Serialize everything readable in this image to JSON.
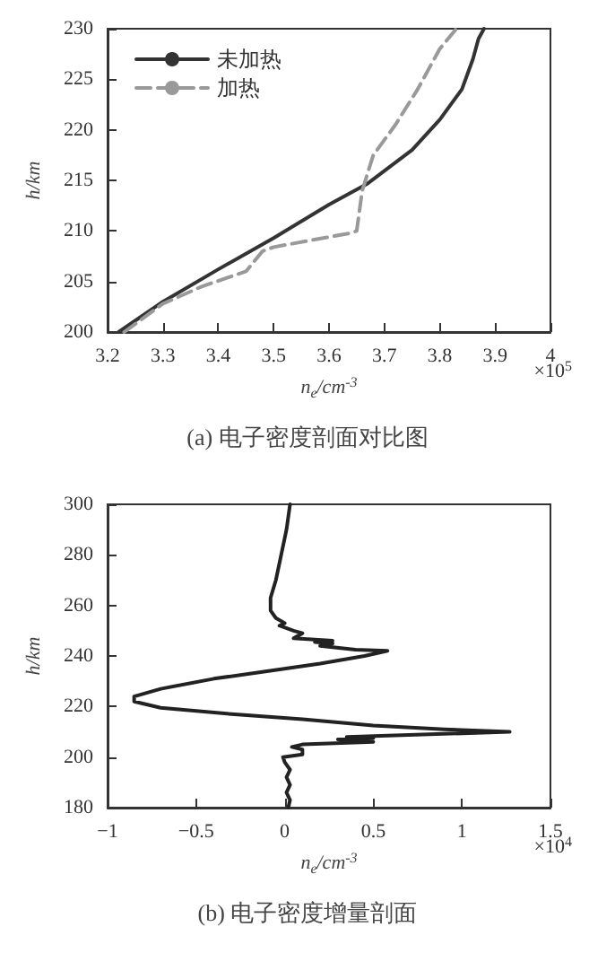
{
  "chart_data": [
    {
      "type": "line",
      "title": "(a) 电子密度剖面对比图",
      "xlabel": "n$_{e}$/cm$^{-3}$",
      "ylabel": "h/km",
      "annotations": [
        "×10$^{5}$"
      ],
      "xlim": [
        3.2,
        4
      ],
      "xticks": [
        3.2,
        3.3,
        3.4,
        3.5,
        3.6,
        3.7,
        3.8,
        3.9,
        4
      ],
      "ylim": [
        200,
        230
      ],
      "yticks": [
        200,
        205,
        210,
        215,
        220,
        225,
        230
      ],
      "grid": false,
      "legend": "top left",
      "series": [
        {
          "name": "未加热",
          "color": "#333333",
          "line_style": "solid",
          "x": [
            3.22,
            3.3,
            3.4,
            3.5,
            3.6,
            3.67,
            3.75,
            3.8,
            3.84,
            3.86,
            3.87,
            3.88
          ],
          "values": [
            200,
            203,
            206.2,
            209.3,
            212.6,
            214.7,
            218,
            221,
            224,
            227,
            229,
            230
          ]
        },
        {
          "name": "加热",
          "color": "#999999",
          "line_style": "dashed",
          "x": [
            3.23,
            3.3,
            3.37,
            3.45,
            3.48,
            3.5,
            3.64,
            3.65,
            3.66,
            3.68,
            3.72,
            3.76,
            3.8,
            3.83
          ],
          "values": [
            200,
            202.8,
            204.5,
            206,
            208,
            208.4,
            209.8,
            210,
            214,
            217.5,
            220.5,
            224,
            228,
            230
          ]
        }
      ]
    },
    {
      "type": "line",
      "title": "(b) 电子密度增量剖面",
      "xlabel": "n$_{e}$/cm$^{-3}$",
      "ylabel": "h/km",
      "annotations": [
        "×10$^{4}$"
      ],
      "xlim": [
        -1,
        1.5
      ],
      "xticks": [
        -1,
        -0.5,
        0,
        0.5,
        1,
        1.5
      ],
      "ylim": [
        180,
        300
      ],
      "yticks": [
        180,
        200,
        220,
        240,
        260,
        280,
        300
      ],
      "grid": false,
      "legend": false,
      "series": [
        {
          "color": "#222222",
          "line_style": "solid",
          "x": [
            0.02,
            0.03,
            0.01,
            0.03,
            0.01,
            0.03,
            0,
            -0.01,
            0.1,
            0.1,
            0.04,
            0.1,
            0.5,
            0.3,
            0.5,
            0.35,
            1.27,
            0.9,
            0.5,
            0.1,
            -0.3,
            -0.7,
            -0.85,
            -0.85,
            -0.7,
            -0.4,
            -0.1,
            0.2,
            0.45,
            0.58,
            0.4,
            0.2,
            0.27,
            0.17,
            0.27,
            0.05,
            0.1,
            0.05,
            -0.03,
            0,
            -0.05,
            -0.08,
            -0.08,
            -0.05,
            -0.02,
            0.01,
            0.03
          ],
          "values": [
            180,
            183,
            186,
            189,
            192,
            195,
            198,
            200,
            201,
            203,
            204,
            205,
            206,
            207,
            207.5,
            208,
            210,
            211,
            212.5,
            215,
            217,
            219.5,
            222,
            224,
            227,
            231,
            234,
            237,
            240,
            242,
            242.5,
            244,
            245,
            245.5,
            246,
            247,
            249,
            250,
            252,
            253,
            255,
            258,
            263,
            270,
            280,
            290,
            300
          ]
        }
      ]
    }
  ]
}
